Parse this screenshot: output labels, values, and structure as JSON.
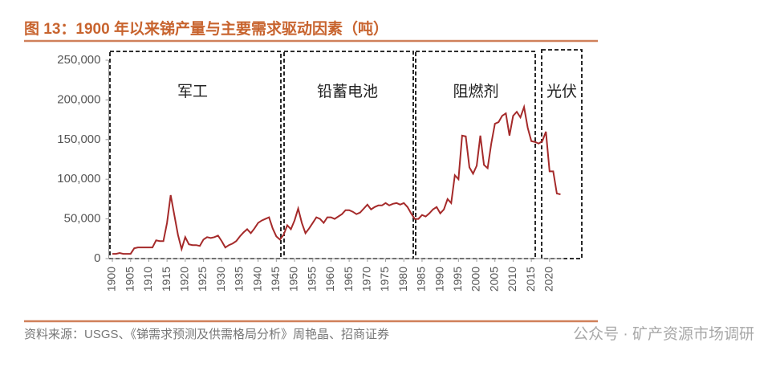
{
  "chart_data": {
    "type": "line",
    "title": "图 13：1900 年以来锑产量与主要需求驱动因素（吨）",
    "source": "资料来源：USGS、《锑需求预测及供需格局分析》周艳晶、招商证券",
    "watermark": "公众号 · 矿产资源市场调研",
    "annotations": [
      "军工",
      "铅蓄电池",
      "阻燃剂",
      "光伏"
    ],
    "x": [
      1900,
      1901,
      1902,
      1903,
      1904,
      1905,
      1906,
      1907,
      1908,
      1909,
      1910,
      1911,
      1912,
      1913,
      1914,
      1915,
      1916,
      1917,
      1918,
      1919,
      1920,
      1921,
      1922,
      1923,
      1924,
      1925,
      1926,
      1927,
      1928,
      1929,
      1930,
      1931,
      1932,
      1933,
      1934,
      1935,
      1936,
      1937,
      1938,
      1939,
      1940,
      1941,
      1942,
      1943,
      1944,
      1945,
      1946,
      1947,
      1948,
      1949,
      1950,
      1951,
      1952,
      1953,
      1954,
      1955,
      1956,
      1957,
      1958,
      1959,
      1960,
      1961,
      1962,
      1963,
      1964,
      1965,
      1966,
      1967,
      1968,
      1969,
      1970,
      1971,
      1972,
      1973,
      1974,
      1975,
      1976,
      1977,
      1978,
      1979,
      1980,
      1981,
      1982,
      1983,
      1984,
      1985,
      1986,
      1987,
      1988,
      1989,
      1990,
      1991,
      1992,
      1993,
      1994,
      1995,
      1996,
      1997,
      1998,
      1999,
      2000,
      2001,
      2002,
      2003,
      2004,
      2005,
      2006,
      2007,
      2008,
      2009,
      2010,
      2011,
      2012,
      2013,
      2014,
      2015,
      2016,
      2017,
      2018,
      2019,
      2020,
      2021,
      2022,
      2023
    ],
    "series": [
      {
        "color": "#a52a2a",
        "values": [
          6000,
          6000,
          7000,
          6000,
          6000,
          6000,
          13000,
          14000,
          14000,
          14000,
          14000,
          14000,
          23000,
          22000,
          22000,
          45000,
          80000,
          55000,
          30000,
          12000,
          27000,
          18000,
          17000,
          17000,
          16000,
          24000,
          27000,
          26000,
          27000,
          29000,
          22000,
          14000,
          17000,
          19000,
          22000,
          28000,
          33000,
          37000,
          32000,
          38000,
          45000,
          48000,
          50000,
          52000,
          38000,
          28000,
          24000,
          30000,
          42000,
          37000,
          48000,
          63000,
          45000,
          32000,
          38000,
          45000,
          52000,
          50000,
          45000,
          52000,
          52000,
          50000,
          53000,
          56000,
          61000,
          61000,
          59000,
          56000,
          58000,
          63000,
          68000,
          62000,
          65000,
          67000,
          67000,
          70000,
          67000,
          69000,
          70000,
          68000,
          70000,
          65000,
          57000,
          50000,
          50000,
          55000,
          53000,
          57000,
          62000,
          65000,
          57000,
          62000,
          75000,
          70000,
          105000,
          100000,
          155000,
          154000,
          115000,
          107000,
          117000,
          155000,
          118000,
          114000,
          145000,
          170000,
          172000,
          180000,
          183000,
          155000,
          180000,
          185000,
          178000,
          191000,
          165000,
          148000,
          147000,
          145000,
          148000,
          160000,
          110000,
          110000,
          82000,
          81000
        ]
      }
    ],
    "xlim": [
      1899,
      2024
    ],
    "xticks": [
      1900,
      1905,
      1910,
      1915,
      1920,
      1925,
      1930,
      1935,
      1940,
      1945,
      1950,
      1955,
      1960,
      1965,
      1970,
      1975,
      1980,
      1985,
      1990,
      1995,
      2000,
      2005,
      2010,
      2015,
      2020
    ],
    "ylim": [
      0,
      250000
    ],
    "yticks": [
      0,
      {
        "value": 50000,
        "label": "50,000"
      },
      {
        "value": 100000,
        "label": "100,000"
      },
      {
        "value": 150000,
        "label": "150,000"
      },
      {
        "value": 200000,
        "label": "200,000"
      },
      {
        "value": 250000,
        "label": "250,000"
      }
    ],
    "grid": false
  }
}
